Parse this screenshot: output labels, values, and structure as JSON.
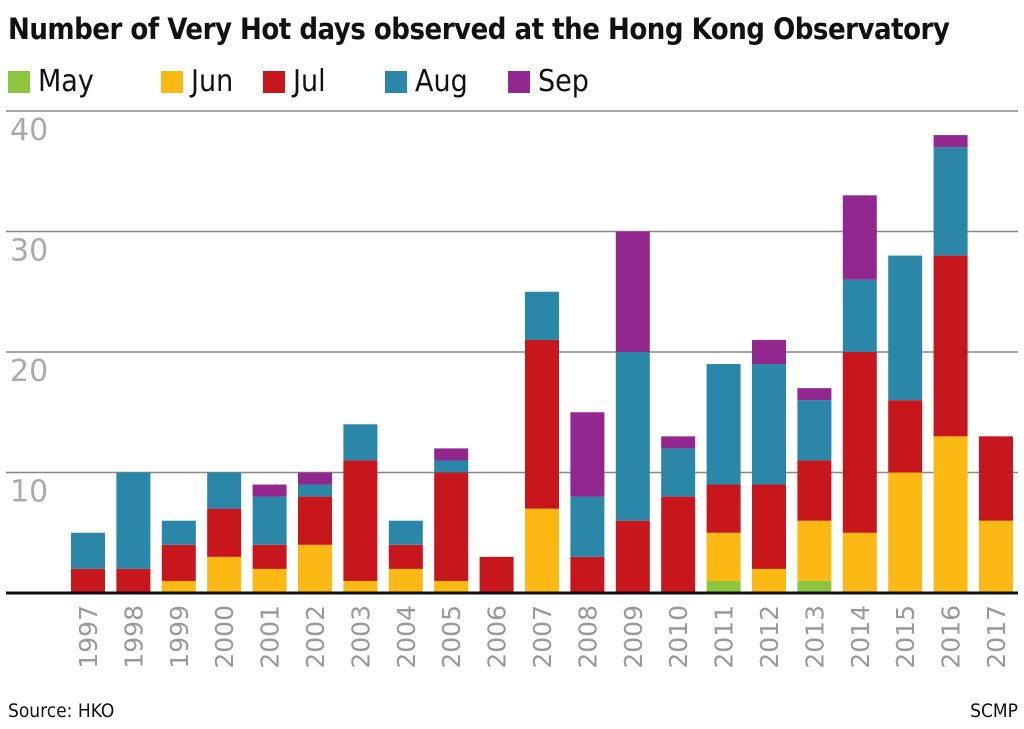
{
  "chart_data": {
    "type": "bar",
    "stacked": true,
    "title": "Number of Very Hot days observed at the Hong Kong Observatory",
    "categories": [
      "1997",
      "1998",
      "1999",
      "2000",
      "2001",
      "2002",
      "2003",
      "2004",
      "2005",
      "2006",
      "2007",
      "2008",
      "2009",
      "2010",
      "2011",
      "2012",
      "2013",
      "2014",
      "2015",
      "2016",
      "2017"
    ],
    "series": [
      {
        "name": "May",
        "color": "#8cc63f",
        "values": [
          0,
          0,
          0,
          0,
          0,
          0,
          0,
          0,
          0,
          0,
          0,
          0,
          0,
          0,
          1,
          0,
          1,
          0,
          0,
          0,
          0
        ]
      },
      {
        "name": "Jun",
        "color": "#fdb913",
        "values": [
          0,
          0,
          1,
          3,
          2,
          4,
          1,
          2,
          1,
          0,
          7,
          0,
          0,
          0,
          4,
          2,
          5,
          5,
          10,
          13,
          6
        ]
      },
      {
        "name": "Jul",
        "color": "#c8161d",
        "values": [
          2,
          2,
          3,
          4,
          2,
          4,
          10,
          2,
          9,
          3,
          14,
          3,
          6,
          8,
          4,
          7,
          5,
          15,
          6,
          15,
          7
        ]
      },
      {
        "name": "Aug",
        "color": "#2a87a8",
        "values": [
          3,
          8,
          2,
          3,
          4,
          1,
          3,
          2,
          1,
          0,
          4,
          5,
          14,
          4,
          10,
          10,
          5,
          6,
          12,
          9,
          0
        ]
      },
      {
        "name": "Sep",
        "color": "#92278f",
        "values": [
          0,
          0,
          0,
          0,
          1,
          1,
          0,
          0,
          1,
          0,
          0,
          7,
          10,
          1,
          0,
          2,
          1,
          7,
          0,
          1,
          0
        ]
      }
    ],
    "y_ticks": [
      "10",
      "20",
      "30",
      "40"
    ],
    "ylim": [
      0,
      40
    ],
    "grid": true,
    "legend_position": "top-left",
    "source": "Source: HKO",
    "credit": "SCMP"
  }
}
